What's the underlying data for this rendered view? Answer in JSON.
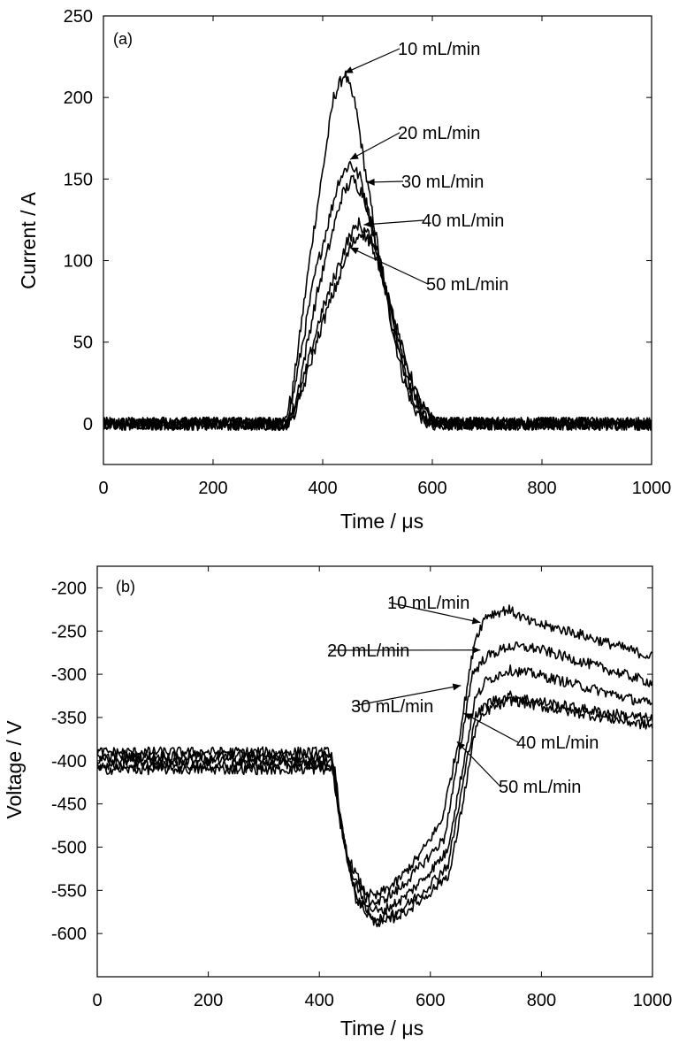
{
  "chart_data": [
    {
      "type": "line",
      "panel_label": "(a)",
      "xlabel": "Time / μs",
      "ylabel": "Current / A",
      "xlim": [
        0,
        1000
      ],
      "ylim": [
        -25,
        250
      ],
      "xticks": [
        0,
        200,
        400,
        600,
        800,
        1000
      ],
      "yticks": [
        0,
        50,
        100,
        150,
        200,
        250
      ],
      "grid": false,
      "noise_amplitude": 4,
      "series": [
        {
          "name": "10 mL/min",
          "points": [
            [
              0,
              0
            ],
            [
              330,
              0
            ],
            [
              345,
              20
            ],
            [
              380,
              110
            ],
            [
              420,
              200
            ],
            [
              440,
              215
            ],
            [
              460,
              195
            ],
            [
              480,
              150
            ],
            [
              500,
              110
            ],
            [
              520,
              70
            ],
            [
              545,
              30
            ],
            [
              565,
              10
            ],
            [
              590,
              0
            ],
            [
              1000,
              0
            ]
          ]
        },
        {
          "name": "20 mL/min",
          "points": [
            [
              0,
              0
            ],
            [
              330,
              0
            ],
            [
              345,
              15
            ],
            [
              385,
              90
            ],
            [
              430,
              150
            ],
            [
              450,
              160
            ],
            [
              470,
              150
            ],
            [
              490,
              120
            ],
            [
              510,
              90
            ],
            [
              530,
              55
            ],
            [
              555,
              25
            ],
            [
              580,
              5
            ],
            [
              600,
              0
            ],
            [
              1000,
              0
            ]
          ]
        },
        {
          "name": "30 mL/min",
          "points": [
            [
              0,
              0
            ],
            [
              335,
              0
            ],
            [
              350,
              12
            ],
            [
              390,
              80
            ],
            [
              435,
              140
            ],
            [
              455,
              150
            ],
            [
              475,
              140
            ],
            [
              495,
              115
            ],
            [
              515,
              85
            ],
            [
              535,
              52
            ],
            [
              560,
              22
            ],
            [
              585,
              5
            ],
            [
              605,
              0
            ],
            [
              1000,
              0
            ]
          ]
        },
        {
          "name": "40 mL/min",
          "points": [
            [
              0,
              0
            ],
            [
              335,
              0
            ],
            [
              352,
              10
            ],
            [
              395,
              65
            ],
            [
              445,
              112
            ],
            [
              465,
              123
            ],
            [
              485,
              115
            ],
            [
              505,
              95
            ],
            [
              525,
              70
            ],
            [
              545,
              45
            ],
            [
              570,
              18
            ],
            [
              595,
              3
            ],
            [
              615,
              0
            ],
            [
              1000,
              0
            ]
          ]
        },
        {
          "name": "50 mL/min",
          "points": [
            [
              0,
              0
            ],
            [
              335,
              0
            ],
            [
              352,
              8
            ],
            [
              398,
              60
            ],
            [
              450,
              108
            ],
            [
              470,
              118
            ],
            [
              490,
              110
            ],
            [
              510,
              90
            ],
            [
              530,
              65
            ],
            [
              550,
              40
            ],
            [
              575,
              15
            ],
            [
              600,
              2
            ],
            [
              620,
              0
            ],
            [
              1000,
              0
            ]
          ]
        }
      ],
      "annotations": [
        {
          "text": "10 mL/min",
          "x_data": 440,
          "y_data": 215
        },
        {
          "text": "20 mL/min",
          "x_data": 450,
          "y_data": 162
        },
        {
          "text": "30 mL/min",
          "x_data": 480,
          "y_data": 148
        },
        {
          "text": "40 mL/min",
          "x_data": 475,
          "y_data": 122
        },
        {
          "text": "50 mL/min",
          "x_data": 450,
          "y_data": 108
        }
      ]
    },
    {
      "type": "line",
      "panel_label": "(b)",
      "xlabel": "Time / μs",
      "ylabel": "Voltage / V",
      "xlim": [
        0,
        1000
      ],
      "ylim": [
        -650,
        -175
      ],
      "xticks": [
        0,
        200,
        400,
        600,
        800,
        1000
      ],
      "yticks": [
        -200,
        -250,
        -300,
        -350,
        -400,
        -450,
        -500,
        -550,
        -600
      ],
      "grid": false,
      "noise_amplitude": 6,
      "series": [
        {
          "name": "10 mL/min",
          "points": [
            [
              0,
              -390
            ],
            [
              420,
              -390
            ],
            [
              430,
              -440
            ],
            [
              450,
              -510
            ],
            [
              480,
              -550
            ],
            [
              500,
              -558
            ],
            [
              540,
              -540
            ],
            [
              580,
              -510
            ],
            [
              620,
              -470
            ],
            [
              650,
              -380
            ],
            [
              680,
              -260
            ],
            [
              700,
              -232
            ],
            [
              740,
              -225
            ],
            [
              780,
              -240
            ],
            [
              850,
              -250
            ],
            [
              1000,
              -280
            ]
          ]
        },
        {
          "name": "20 mL/min",
          "points": [
            [
              0,
              -395
            ],
            [
              422,
              -395
            ],
            [
              432,
              -450
            ],
            [
              455,
              -525
            ],
            [
              485,
              -560
            ],
            [
              505,
              -565
            ],
            [
              545,
              -548
            ],
            [
              585,
              -520
            ],
            [
              625,
              -490
            ],
            [
              650,
              -400
            ],
            [
              675,
              -300
            ],
            [
              700,
              -280
            ],
            [
              740,
              -268
            ],
            [
              790,
              -270
            ],
            [
              870,
              -285
            ],
            [
              1000,
              -310
            ]
          ]
        },
        {
          "name": "30 mL/min",
          "points": [
            [
              0,
              -400
            ],
            [
              424,
              -400
            ],
            [
              435,
              -460
            ],
            [
              460,
              -540
            ],
            [
              490,
              -570
            ],
            [
              510,
              -575
            ],
            [
              550,
              -560
            ],
            [
              590,
              -535
            ],
            [
              630,
              -505
            ],
            [
              655,
              -420
            ],
            [
              680,
              -330
            ],
            [
              700,
              -308
            ],
            [
              740,
              -295
            ],
            [
              790,
              -300
            ],
            [
              880,
              -315
            ],
            [
              1000,
              -335
            ]
          ]
        },
        {
          "name": "40 mL/min",
          "points": [
            [
              0,
              -405
            ],
            [
              426,
              -405
            ],
            [
              437,
              -470
            ],
            [
              462,
              -550
            ],
            [
              492,
              -580
            ],
            [
              512,
              -583
            ],
            [
              552,
              -570
            ],
            [
              592,
              -548
            ],
            [
              632,
              -520
            ],
            [
              655,
              -440
            ],
            [
              680,
              -350
            ],
            [
              705,
              -332
            ],
            [
              745,
              -325
            ],
            [
              800,
              -332
            ],
            [
              890,
              -342
            ],
            [
              1000,
              -352
            ]
          ]
        },
        {
          "name": "50 mL/min",
          "points": [
            [
              0,
              -410
            ],
            [
              428,
              -410
            ],
            [
              440,
              -478
            ],
            [
              465,
              -558
            ],
            [
              495,
              -585
            ],
            [
              515,
              -588
            ],
            [
              555,
              -575
            ],
            [
              595,
              -555
            ],
            [
              635,
              -530
            ],
            [
              658,
              -450
            ],
            [
              682,
              -360
            ],
            [
              707,
              -340
            ],
            [
              747,
              -330
            ],
            [
              805,
              -338
            ],
            [
              895,
              -348
            ],
            [
              1000,
              -360
            ]
          ]
        }
      ],
      "annotations": [
        {
          "text": "10 mL/min",
          "x_data": 690,
          "y_data": -240
        },
        {
          "text": "20 mL/min",
          "x_data": 690,
          "y_data": -272
        },
        {
          "text": "30 mL/min",
          "x_data": 655,
          "y_data": -313
        },
        {
          "text": "40 mL/min",
          "x_data": 660,
          "y_data": -345
        },
        {
          "text": "50 mL/min",
          "x_data": 648,
          "y_data": -378
        }
      ]
    }
  ]
}
